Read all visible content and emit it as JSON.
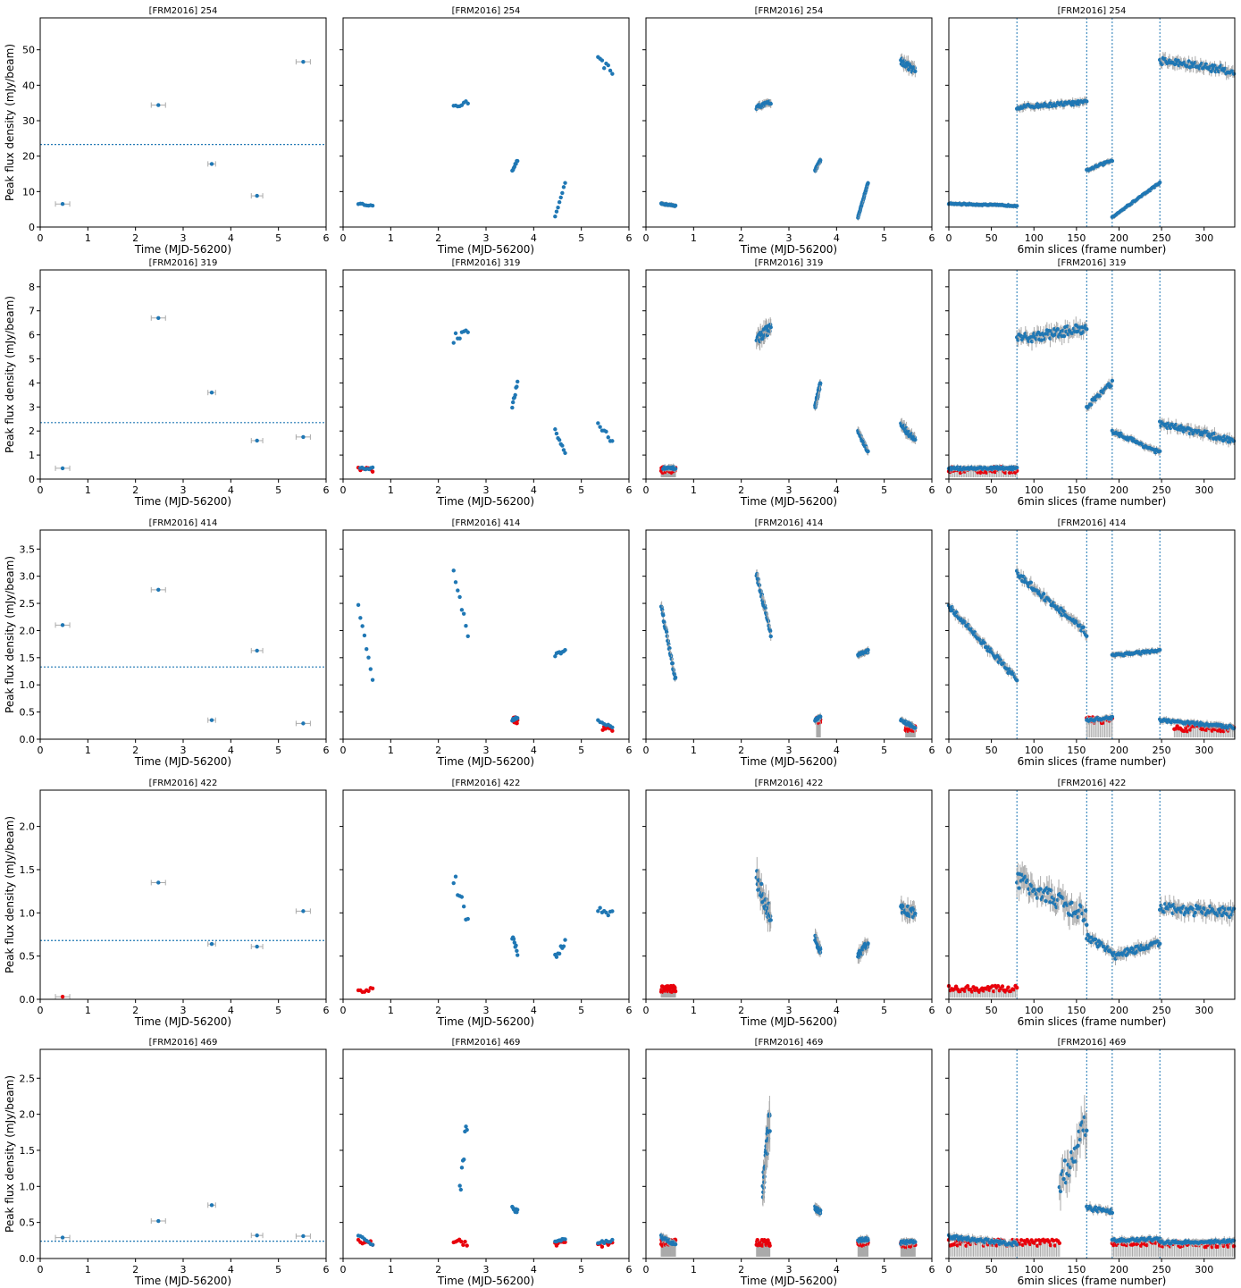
{
  "figure": {
    "ylabel": "Peak flux density (mJy/beam)",
    "xlabel_time": "Time (MJD-56200)",
    "xlabel_frames": "6min slices (frame number)",
    "colors": {
      "detection": "#1f77b4",
      "upper_limit": "#e8000b",
      "error_bar": "#aaaaaa",
      "threshold_line": "#1f77b4"
    }
  },
  "chart_data": [
    {
      "source": "[FRM2016] 254",
      "ylim": [
        0,
        59
      ],
      "yticks": [
        0,
        10,
        20,
        30,
        40,
        50
      ],
      "ytick_labels": [
        "0",
        "10",
        "20",
        "30",
        "40",
        "50"
      ],
      "threshold": 23.3,
      "daily": [
        {
          "x": 0.47,
          "y": 6.5,
          "xerr": 0.15
        },
        {
          "x": 2.48,
          "y": 34.4,
          "xerr": 0.15
        },
        {
          "x": 3.6,
          "y": 17.8,
          "xerr": 0.08
        },
        {
          "x": 4.55,
          "y": 8.8,
          "xerr": 0.12
        },
        {
          "x": 5.52,
          "y": 46.6,
          "xerr": 0.15
        }
      ],
      "runs": [
        {
          "x0": 0.32,
          "x1": 0.62,
          "y0": 6.6,
          "y1": 6.0,
          "f0": 0,
          "f1": 80,
          "noise": 0.3
        },
        {
          "x0": 2.32,
          "x1": 2.62,
          "y0": 33.8,
          "y1": 35.2,
          "f0": 80,
          "f1": 162,
          "noise": 1.0
        },
        {
          "x0": 3.55,
          "x1": 3.66,
          "y0": 16.0,
          "y1": 18.8,
          "f0": 162,
          "f1": 192,
          "noise": 0.6
        },
        {
          "x0": 4.45,
          "x1": 4.66,
          "y0": 2.8,
          "y1": 12.5,
          "f0": 192,
          "f1": 248,
          "noise": 0.4
        },
        {
          "x0": 5.35,
          "x1": 5.65,
          "y0": 47.0,
          "y1": 44.0,
          "f0": 248,
          "f1": 335,
          "noise": 2.0
        }
      ],
      "upper_limits": []
    },
    {
      "source": "[FRM2016] 319",
      "ylim": [
        0,
        8.7
      ],
      "yticks": [
        0,
        1,
        2,
        3,
        4,
        5,
        6,
        7,
        8
      ],
      "ytick_labels": [
        "0",
        "1",
        "2",
        "3",
        "4",
        "5",
        "6",
        "7",
        "8"
      ],
      "threshold": 2.35,
      "daily": [
        {
          "x": 0.47,
          "y": 0.45,
          "xerr": 0.15
        },
        {
          "x": 2.48,
          "y": 6.7,
          "xerr": 0.15
        },
        {
          "x": 3.6,
          "y": 3.6,
          "xerr": 0.08
        },
        {
          "x": 4.55,
          "y": 1.6,
          "xerr": 0.12
        },
        {
          "x": 5.52,
          "y": 1.75,
          "xerr": 0.15
        }
      ],
      "runs": [
        {
          "x0": 0.36,
          "x1": 0.62,
          "y0": 0.45,
          "y1": 0.45,
          "f0": 0,
          "f1": 80,
          "noise": 0.1
        },
        {
          "x0": 2.32,
          "x1": 2.62,
          "y0": 5.8,
          "y1": 6.3,
          "f0": 80,
          "f1": 162,
          "noise": 0.4
        },
        {
          "x0": 3.55,
          "x1": 3.66,
          "y0": 3.0,
          "y1": 4.0,
          "f0": 162,
          "f1": 192,
          "noise": 0.2
        },
        {
          "x0": 4.45,
          "x1": 4.66,
          "y0": 2.0,
          "y1": 1.1,
          "f0": 192,
          "f1": 248,
          "noise": 0.15
        },
        {
          "x0": 5.35,
          "x1": 5.65,
          "y0": 2.3,
          "y1": 1.6,
          "f0": 248,
          "f1": 335,
          "noise": 0.25
        }
      ],
      "upper_limits": [
        {
          "x0": 0.32,
          "x1": 0.62,
          "y": 0.38,
          "f0": 0,
          "f1": 80
        }
      ]
    },
    {
      "source": "[FRM2016] 414",
      "ylim": [
        0,
        3.85
      ],
      "yticks": [
        0,
        0.5,
        1,
        1.5,
        2,
        2.5,
        3,
        3.5
      ],
      "ytick_labels": [
        "0.0",
        "0.5",
        "1.0",
        "1.5",
        "2.0",
        "2.5",
        "3.0",
        "3.5"
      ],
      "threshold": 1.33,
      "daily": [
        {
          "x": 0.47,
          "y": 2.1,
          "xerr": 0.15
        },
        {
          "x": 2.48,
          "y": 2.75,
          "xerr": 0.15
        },
        {
          "x": 3.6,
          "y": 0.35,
          "xerr": 0.08
        },
        {
          "x": 4.55,
          "y": 1.63,
          "xerr": 0.12
        },
        {
          "x": 5.52,
          "y": 0.29,
          "xerr": 0.15
        }
      ],
      "runs": [
        {
          "x0": 0.32,
          "x1": 0.62,
          "y0": 2.45,
          "y1": 1.1,
          "f0": 0,
          "f1": 80,
          "noise": 0.1
        },
        {
          "x0": 2.32,
          "x1": 2.62,
          "y0": 3.05,
          "y1": 1.95,
          "f0": 80,
          "f1": 162,
          "noise": 0.12
        },
        {
          "x0": 3.55,
          "x1": 3.66,
          "y0": 0.35,
          "y1": 0.4,
          "f0": 162,
          "f1": 192,
          "noise": 0.05
        },
        {
          "x0": 4.45,
          "x1": 4.66,
          "y0": 1.55,
          "y1": 1.62,
          "f0": 192,
          "f1": 248,
          "noise": 0.05
        },
        {
          "x0": 5.35,
          "x1": 5.65,
          "y0": 0.35,
          "y1": 0.22,
          "f0": 248,
          "f1": 335,
          "noise": 0.05
        }
      ],
      "upper_limits": [
        {
          "x0": 3.58,
          "x1": 3.66,
          "y": 0.35,
          "f0": 162,
          "f1": 192
        },
        {
          "x0": 5.45,
          "x1": 5.65,
          "y": 0.2,
          "f0": 265,
          "f1": 335
        }
      ]
    },
    {
      "source": "[FRM2016] 422",
      "ylim": [
        0,
        2.42
      ],
      "yticks": [
        0,
        0.5,
        1,
        1.5,
        2
      ],
      "ytick_labels": [
        "0.0",
        "0.5",
        "1.0",
        "1.5",
        "2.0"
      ],
      "threshold": 0.68,
      "daily": [
        {
          "x": 2.48,
          "y": 1.35,
          "xerr": 0.15
        },
        {
          "x": 3.6,
          "y": 0.64,
          "xerr": 0.08
        },
        {
          "x": 4.55,
          "y": 0.61,
          "xerr": 0.12
        },
        {
          "x": 5.52,
          "y": 1.02,
          "xerr": 0.15
        }
      ],
      "daily_limits": [
        {
          "x": 0.47,
          "y": 0.03,
          "xerr": 0.15
        }
      ],
      "runs": [
        {
          "x0": 2.32,
          "x1": 2.62,
          "y0": 1.4,
          "y1": 0.95,
          "f0": 80,
          "f1": 162,
          "noise": 0.2
        },
        {
          "x0": 3.55,
          "x1": 3.66,
          "y0": 0.72,
          "y1": 0.55,
          "f0": 162,
          "f1": 192,
          "noise": 0.08
        },
        {
          "x0": 4.45,
          "x1": 4.66,
          "y0": 0.5,
          "y1": 0.65,
          "f0": 192,
          "f1": 248,
          "noise": 0.08
        },
        {
          "x0": 5.35,
          "x1": 5.65,
          "y0": 1.05,
          "y1": 1.0,
          "f0": 248,
          "f1": 335,
          "noise": 0.12
        }
      ],
      "upper_limits": [
        {
          "x0": 0.32,
          "x1": 0.62,
          "y": 0.12,
          "f0": 0,
          "f1": 80
        }
      ]
    },
    {
      "source": "[FRM2016] 469",
      "ylim": [
        0,
        2.9
      ],
      "yticks": [
        0,
        0.5,
        1,
        1.5,
        2,
        2.5
      ],
      "ytick_labels": [
        "0.0",
        "0.5",
        "1.0",
        "1.5",
        "2.0",
        "2.5"
      ],
      "threshold": 0.24,
      "daily": [
        {
          "x": 0.47,
          "y": 0.29,
          "xerr": 0.15
        },
        {
          "x": 2.48,
          "y": 0.52,
          "xerr": 0.15
        },
        {
          "x": 3.6,
          "y": 0.74,
          "xerr": 0.08
        },
        {
          "x": 4.55,
          "y": 0.32,
          "xerr": 0.12
        },
        {
          "x": 5.52,
          "y": 0.31,
          "xerr": 0.15
        }
      ],
      "runs": [
        {
          "x0": 0.32,
          "x1": 0.62,
          "y0": 0.3,
          "y1": 0.2,
          "f0": 0,
          "f1": 80,
          "noise": 0.05
        },
        {
          "x0": 2.45,
          "x1": 2.6,
          "y0": 1.0,
          "y1": 1.9,
          "f0": 130,
          "f1": 162,
          "noise": 0.4
        },
        {
          "x0": 3.55,
          "x1": 3.66,
          "y0": 0.7,
          "y1": 0.65,
          "f0": 162,
          "f1": 192,
          "noise": 0.06
        },
        {
          "x0": 4.45,
          "x1": 4.66,
          "y0": 0.25,
          "y1": 0.27,
          "f0": 192,
          "f1": 248,
          "noise": 0.04
        },
        {
          "x0": 5.35,
          "x1": 5.65,
          "y0": 0.22,
          "y1": 0.24,
          "f0": 248,
          "f1": 335,
          "noise": 0.04
        }
      ],
      "upper_limits": [
        {
          "x0": 0.32,
          "x1": 0.62,
          "y": 0.22,
          "f0": 0,
          "f1": 80
        },
        {
          "x0": 2.32,
          "x1": 2.6,
          "y": 0.22,
          "f0": 80,
          "f1": 130
        },
        {
          "x0": 4.45,
          "x1": 4.66,
          "y": 0.22,
          "f0": 192,
          "f1": 248
        },
        {
          "x0": 5.35,
          "x1": 5.65,
          "y": 0.2,
          "f0": 248,
          "f1": 335
        }
      ]
    }
  ],
  "panels": {
    "xlim_time": [
      0,
      6
    ],
    "xticks_time": [
      0,
      1,
      2,
      3,
      4,
      5,
      6
    ],
    "xlim_frames": [
      0,
      336
    ],
    "xticks_frames": [
      0,
      50,
      100,
      150,
      200,
      250,
      300
    ],
    "frame_boundaries": [
      80,
      162,
      192,
      248
    ]
  }
}
